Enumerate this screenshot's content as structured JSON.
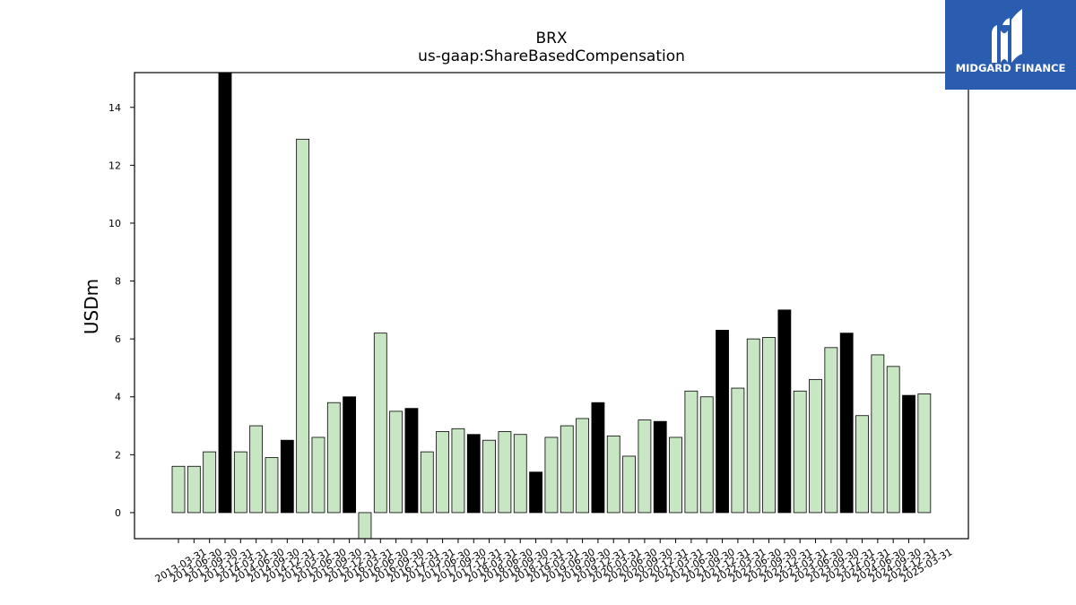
{
  "logo": {
    "text": "MIDGARD FINANCE",
    "background": "#2a5db0",
    "foreground": "#ffffff"
  },
  "chart_data": {
    "type": "bar",
    "title": "BRX",
    "subtitle": "us-gaap:ShareBasedCompensation",
    "xlabel": "",
    "ylabel": "USDm",
    "ylim": [
      -0.9,
      15.2
    ],
    "yticks": [
      0,
      2,
      4,
      6,
      8,
      10,
      12,
      14
    ],
    "grid": false,
    "colors": {
      "quarter": "#c9e6c4",
      "fiscal_year_end": "#000000",
      "edge": "#000000"
    },
    "categories": [
      "2013-03-31",
      "2013-06-30",
      "2013-09-30",
      "2013-12-31",
      "2014-03-31",
      "2014-06-30",
      "2014-09-30",
      "2014-12-31",
      "2015-03-31",
      "2015-06-30",
      "2015-09-30",
      "2015-12-31",
      "2016-03-31",
      "2016-06-30",
      "2016-09-30",
      "2016-12-31",
      "2017-03-31",
      "2017-06-30",
      "2017-09-30",
      "2017-12-31",
      "2018-03-31",
      "2018-06-30",
      "2018-09-30",
      "2018-12-31",
      "2019-03-31",
      "2019-06-30",
      "2019-09-30",
      "2019-12-31",
      "2020-03-31",
      "2020-06-30",
      "2020-09-30",
      "2020-12-31",
      "2021-03-31",
      "2021-06-30",
      "2021-09-30",
      "2021-12-31",
      "2022-03-31",
      "2022-06-30",
      "2022-09-30",
      "2022-12-31",
      "2023-03-31",
      "2023-06-30",
      "2023-09-30",
      "2023-12-31",
      "2024-03-31",
      "2024-06-30",
      "2024-09-30",
      "2024-12-31",
      "2025-03-31"
    ],
    "values": [
      1.6,
      1.6,
      2.1,
      15.2,
      2.1,
      3.0,
      1.9,
      2.5,
      12.9,
      2.6,
      3.8,
      4.0,
      -0.9,
      6.2,
      3.5,
      3.6,
      2.1,
      2.8,
      2.9,
      2.7,
      2.5,
      2.8,
      2.7,
      1.4,
      2.6,
      3.0,
      3.25,
      3.8,
      2.65,
      1.95,
      3.2,
      3.15,
      2.6,
      4.2,
      4.0,
      6.3,
      4.3,
      6.0,
      6.05,
      7.0,
      4.2,
      4.6,
      5.7,
      6.2,
      3.35,
      5.45,
      5.05,
      4.05,
      4.1
    ],
    "fiscal_year_end": [
      false,
      false,
      false,
      true,
      false,
      false,
      false,
      true,
      false,
      false,
      false,
      true,
      false,
      false,
      false,
      true,
      false,
      false,
      false,
      true,
      false,
      false,
      false,
      true,
      false,
      false,
      false,
      true,
      false,
      false,
      false,
      true,
      false,
      false,
      false,
      true,
      false,
      false,
      false,
      true,
      false,
      false,
      false,
      true,
      false,
      false,
      false,
      true,
      false
    ]
  }
}
